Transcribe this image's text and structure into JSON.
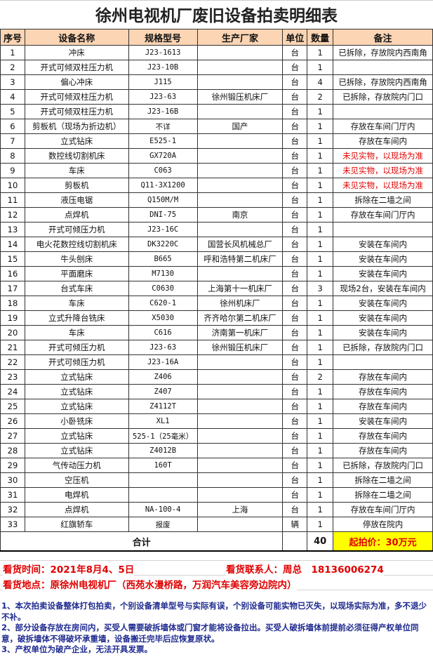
{
  "title": "徐州电视机厂废旧设备拍卖明细表",
  "headers": [
    "序号",
    "设备名称",
    "规格型号",
    "生产厂家",
    "单位",
    "数量",
    "备注"
  ],
  "rows": [
    [
      "1",
      "冲床",
      "J23-1613",
      "",
      "台",
      "1",
      "已拆除，存放院内西南角",
      false
    ],
    [
      "2",
      "开式可倾双柱压力机",
      "J23-10B",
      "",
      "台",
      "1",
      "",
      false
    ],
    [
      "3",
      "偏心冲床",
      "J115",
      "",
      "台",
      "4",
      "已拆除，存放院内西南角",
      false
    ],
    [
      "4",
      "开式可倾双柱压力机",
      "J23-63",
      "徐州锻压机床厂",
      "台",
      "2",
      "已拆除，存放院内门口",
      false
    ],
    [
      "5",
      "开式可倾双柱压力机",
      "J23-16B",
      "",
      "台",
      "1",
      "",
      false
    ],
    [
      "6",
      "剪板机（现场为折边机）",
      "不详",
      "国产",
      "台",
      "1",
      "存放在车间门厅内",
      false
    ],
    [
      "7",
      "立式钻床",
      "E525-1",
      "",
      "台",
      "1",
      "存放在车间内",
      false
    ],
    [
      "8",
      "数控线切割机床",
      "GX720A",
      "",
      "台",
      "1",
      "未见实物，以现场为准",
      true
    ],
    [
      "9",
      "车床",
      "C063",
      "",
      "台",
      "1",
      "未见实物，以现场为准",
      true
    ],
    [
      "10",
      "剪板机",
      "Q11-3X1200",
      "",
      "台",
      "1",
      "未见实物，以现场为准",
      true
    ],
    [
      "11",
      "液压电锯",
      "Q150M/M",
      "",
      "台",
      "1",
      "拆除在二墙之间",
      false
    ],
    [
      "12",
      "点焊机",
      "DNI-75",
      "南京",
      "台",
      "1",
      "存放在车间门厅内",
      false
    ],
    [
      "13",
      "开式可倾压力机",
      "J23-16C",
      "",
      "台",
      "1",
      "",
      false
    ],
    [
      "14",
      "电火花数控线切割机床",
      "DK3220C",
      "国营长风机械总厂",
      "台",
      "1",
      "安装在车间内",
      false
    ],
    [
      "15",
      "牛头刨床",
      "B665",
      "呼和浩特第二机床厂",
      "台",
      "1",
      "安装在车间内",
      false
    ],
    [
      "16",
      "平面磨床",
      "M7130",
      "",
      "台",
      "1",
      "安装在车间内",
      false
    ],
    [
      "17",
      "台式车床",
      "C0630",
      "上海第十一机床厂",
      "台",
      "3",
      "现场2台，安装在车间内",
      false
    ],
    [
      "18",
      "车床",
      "C620-1",
      "徐州机床厂",
      "台",
      "1",
      "安装在车间内",
      false
    ],
    [
      "19",
      "立式升降台铣床",
      "X5030",
      "齐齐哈尔第二机床厂",
      "台",
      "1",
      "安装在车间内",
      false
    ],
    [
      "20",
      "车床",
      "C616",
      "济南第一机床厂",
      "台",
      "1",
      "安装在车间内",
      false
    ],
    [
      "21",
      "开式可倾压力机",
      "J23-63",
      "徐州锻压机床厂",
      "台",
      "1",
      "已拆除，存放院内门口",
      false
    ],
    [
      "22",
      "开式可倾压力机",
      "J23-16A",
      "",
      "台",
      "1",
      "",
      false
    ],
    [
      "23",
      "立式钻床",
      "Z406",
      "",
      "台",
      "2",
      "存放在车间内",
      false
    ],
    [
      "24",
      "立式钻床",
      "Z407",
      "",
      "台",
      "1",
      "存放在车间内",
      false
    ],
    [
      "25",
      "立式钻床",
      "Z4112T",
      "",
      "台",
      "1",
      "存放在车间内",
      false
    ],
    [
      "26",
      "小卧铣床",
      "XL1",
      "",
      "台",
      "1",
      "安装在车间内",
      false
    ],
    [
      "27",
      "立式钻床",
      "525-1（25毫米）",
      "",
      "台",
      "1",
      "存放在车间内",
      false
    ],
    [
      "28",
      "立式钻床",
      "Z4012B",
      "",
      "台",
      "1",
      "存放在车间内",
      false
    ],
    [
      "29",
      "气传动压力机",
      "160T",
      "",
      "台",
      "1",
      "已拆除，存放院内门口",
      false
    ],
    [
      "30",
      "空压机",
      "",
      "",
      "台",
      "1",
      "拆除在二墙之间",
      false
    ],
    [
      "31",
      "电焊机",
      "",
      "",
      "台",
      "1",
      "拆除在二墙之间",
      false
    ],
    [
      "32",
      "点焊机",
      "NA-100-4",
      "上海",
      "台",
      "1",
      "存放在车间门厅内",
      false
    ],
    [
      "33",
      "红旗轿车",
      "报废",
      "",
      "辆",
      "1",
      "停放在院内",
      false
    ]
  ],
  "total": {
    "label": "合计",
    "quantity": "40",
    "price": "起拍价：30万元"
  },
  "viewing": {
    "time": "看货时间：2021年8月4、5日",
    "contact": "看货联系人：周总　18136006274",
    "location": "看货地点：原徐州电视机厂（西苑水漫桥路，万润汽车美容旁边院内）"
  },
  "notes": [
    "1、本次拍卖设备整体打包拍卖，个别设备清单型号与实际有误，个别设备可能实物已灭失，以现场实际为准，多不退少不补。",
    "2、部分设备存放在房间内，买受人需要破拆墙体或门窗才能将设备拉出。买受人破拆墙体前提前必须征得产权单位同意，破拆墙体不得破坏承重墙，设备搬迁完毕后应恢复原状。",
    "3、产权单位为破产企业，无法开具发票。"
  ],
  "colors": {
    "header_bg": "#fcd5b4",
    "red": "#e00000",
    "price_bg": "#ffff00",
    "notes": "#1f2a8f"
  }
}
